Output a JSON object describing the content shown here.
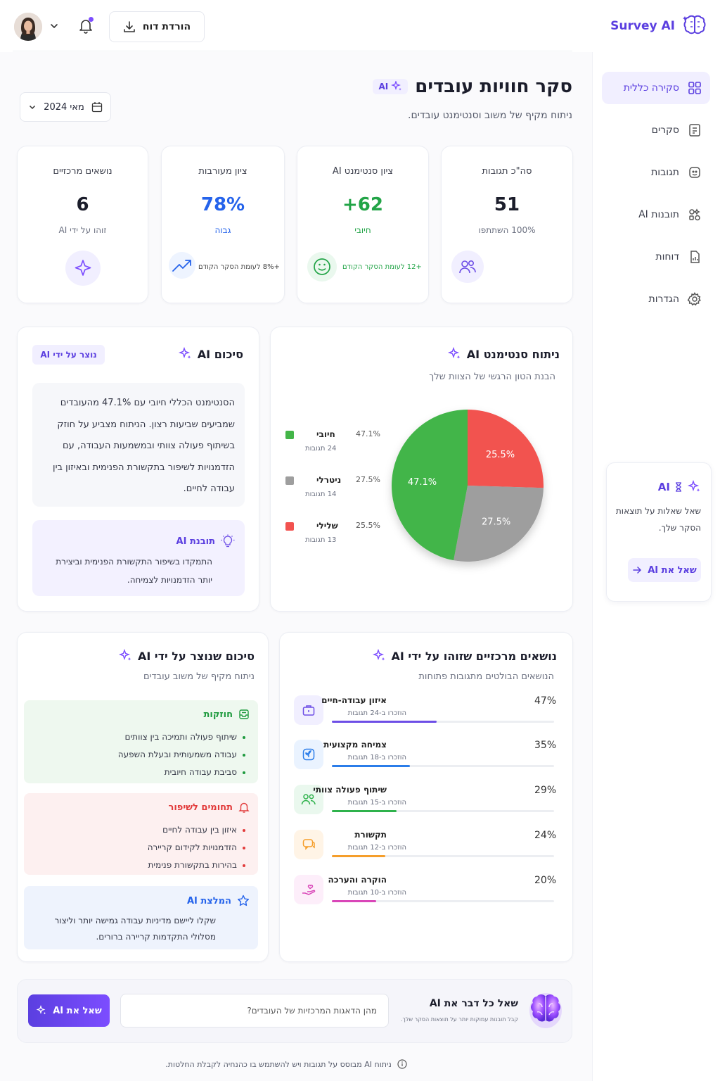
{
  "app": {
    "brand": "Survey AI",
    "download_label": "הורדת דוח"
  },
  "sidebar": {
    "items": [
      {
        "label": "סקירה כללית",
        "icon": "grid-icon",
        "active": true
      },
      {
        "label": "סקרים",
        "icon": "survey-icon"
      },
      {
        "label": "תגובות",
        "icon": "responses-icon"
      },
      {
        "label": "תובנות AI",
        "icon": "insights-icon"
      },
      {
        "label": "דוחות",
        "icon": "report-icon"
      },
      {
        "label": "הגדרות",
        "icon": "gear-icon"
      }
    ],
    "ask_card": {
      "title": "AI",
      "text": "שאל שאלות על תוצאות הסקר שלך.",
      "button": "שאל את AI"
    }
  },
  "header": {
    "title": "סקר חוויות עובדים",
    "ai_badge": "AI",
    "subtitle": "ניתוח מקיף של משוב וסנטימנט עובדים.",
    "date_filter": "מאי 2024"
  },
  "stats": [
    {
      "label": "סה\"כ תגובות",
      "value": "51",
      "sub": "100% השתתפו",
      "color": "#1b1d2b",
      "icon": "users-icon"
    },
    {
      "label": "ציון סנטימנט AI",
      "value": "+62",
      "sub": "חיובי",
      "color": "#22a447",
      "trend": "+12 לעומת הסקר הקודם",
      "icon": "smile-icon"
    },
    {
      "label": "ציון מעורבות",
      "value": "78%",
      "sub": "גבוה",
      "color": "#2563eb",
      "trend": "+8% לעומת הסקר הקודם",
      "icon": "trend-up-icon"
    },
    {
      "label": "נושאים מרכזיים",
      "value": "6",
      "sub": "זוהו על ידי AI",
      "color": "#1b1d2b",
      "icon": "sparkle-icon"
    }
  ],
  "sentiment": {
    "title": "ניתוח סנטימנט AI",
    "subtitle": "הבנת הטון הרגשי של הצוות שלך",
    "legend": [
      {
        "name": "חיובי",
        "pct": "47.1%",
        "count": "24 תגובות",
        "color": "#43b548"
      },
      {
        "name": "ניטרלי",
        "pct": "27.5%",
        "count": "14 תגובות",
        "color": "#9e9e9e"
      },
      {
        "name": "שלילי",
        "pct": "25.5%",
        "count": "13 תגובות",
        "color": "#f2524f"
      }
    ]
  },
  "chart_data": {
    "type": "pie",
    "categories": [
      "חיובי",
      "ניטרלי",
      "שלילי"
    ],
    "values": [
      47.1,
      27.5,
      25.5
    ],
    "labels": [
      "47.1%",
      "27.5%",
      "25.5%"
    ],
    "colors": [
      "#43b548",
      "#9e9e9e",
      "#f2524f"
    ]
  },
  "ai_summary": {
    "title": "סיכום AI",
    "badge": "נוצר על ידי AI",
    "text": "הסנטימנט הכללי חיובי עם 47.1% מהעובדים שמביעים שביעות רצון. הניתוח מצביע על חוזק בשיתוף פעולה צוותי ובמשמעות העבודה, עם הזדמנויות לשיפור בתקשורת הפנימית ובאיזון בין עבודה לחיים.",
    "insight_title": "תובנת AI",
    "insight_text": "התמקדו בשיפור התקשורת הפנימית וביצירת יותר הזדמנויות לצמיחה."
  },
  "topics": {
    "title": "נושאים מרכזיים שזוהו על ידי AI",
    "subtitle": "הנושאים הבולטים מתגובות פתוחות",
    "items": [
      {
        "name": "איזון עבודה-חיים",
        "count": "הוזכרו ב-24 תגובות",
        "pct": "47%",
        "value": 47,
        "color": "#6d4ee6",
        "bg": "#f1efff",
        "icon": "briefcase-icon"
      },
      {
        "name": "צמיחה מקצועית",
        "count": "הוזכרו ב-18 תגובות",
        "pct": "35%",
        "value": 35,
        "color": "#2b7de9",
        "bg": "#eaf3ff",
        "icon": "growth-icon"
      },
      {
        "name": "שיתוף פעולה צוותי",
        "count": "הוזכרו ב-15 תגובות",
        "pct": "29%",
        "value": 29,
        "color": "#2fb24c",
        "bg": "#eaf8ee",
        "icon": "team-icon"
      },
      {
        "name": "תקשורת",
        "count": "הוזכרו ב-12 תגובות",
        "pct": "24%",
        "value": 24,
        "color": "#f59e2b",
        "bg": "#fff4e6",
        "icon": "chat-icon"
      },
      {
        "name": "הוקרה והערכה",
        "count": "הוזכרו ב-10 תגובות",
        "pct": "20%",
        "value": 20,
        "color": "#d946b8",
        "bg": "#fdeefa",
        "icon": "appreciation-icon"
      }
    ]
  },
  "generated_summary": {
    "title": "סיכום שנוצר על ידי AI",
    "subtitle": "ניתוח מקיף של משוב עובדים",
    "strengths_title": "חוזקות",
    "strengths": [
      "שיתוף פעולה ותמיכה בין צוותים",
      "עבודה משמעותית ובעלת השפעה",
      "סביבת עבודה חיובית"
    ],
    "improve_title": "תחומים לשיפור",
    "improve": [
      "איזון בין עבודה לחיים",
      "הזדמנויות לקידום קריירה",
      "בהירות בתקשורת פנימית"
    ],
    "rec_title": "המלצת AI",
    "rec_text": "שקלו ליישם מדיניות עבודה גמישה יותר וליצור מסלולי התקדמות קריירה ברורים."
  },
  "ask": {
    "title": "שאל כל דבר את AI",
    "subtitle": "קבל תובנות עמוקות יותר על תוצאות הסקר שלך.",
    "placeholder": "מהן הדאגות המרכזיות של העובדים?",
    "button": "שאל את AI"
  },
  "footer": "ניתוח AI מבוסס על תגובות ויש להשתמש בו כהנחיה לקבלת החלטות."
}
